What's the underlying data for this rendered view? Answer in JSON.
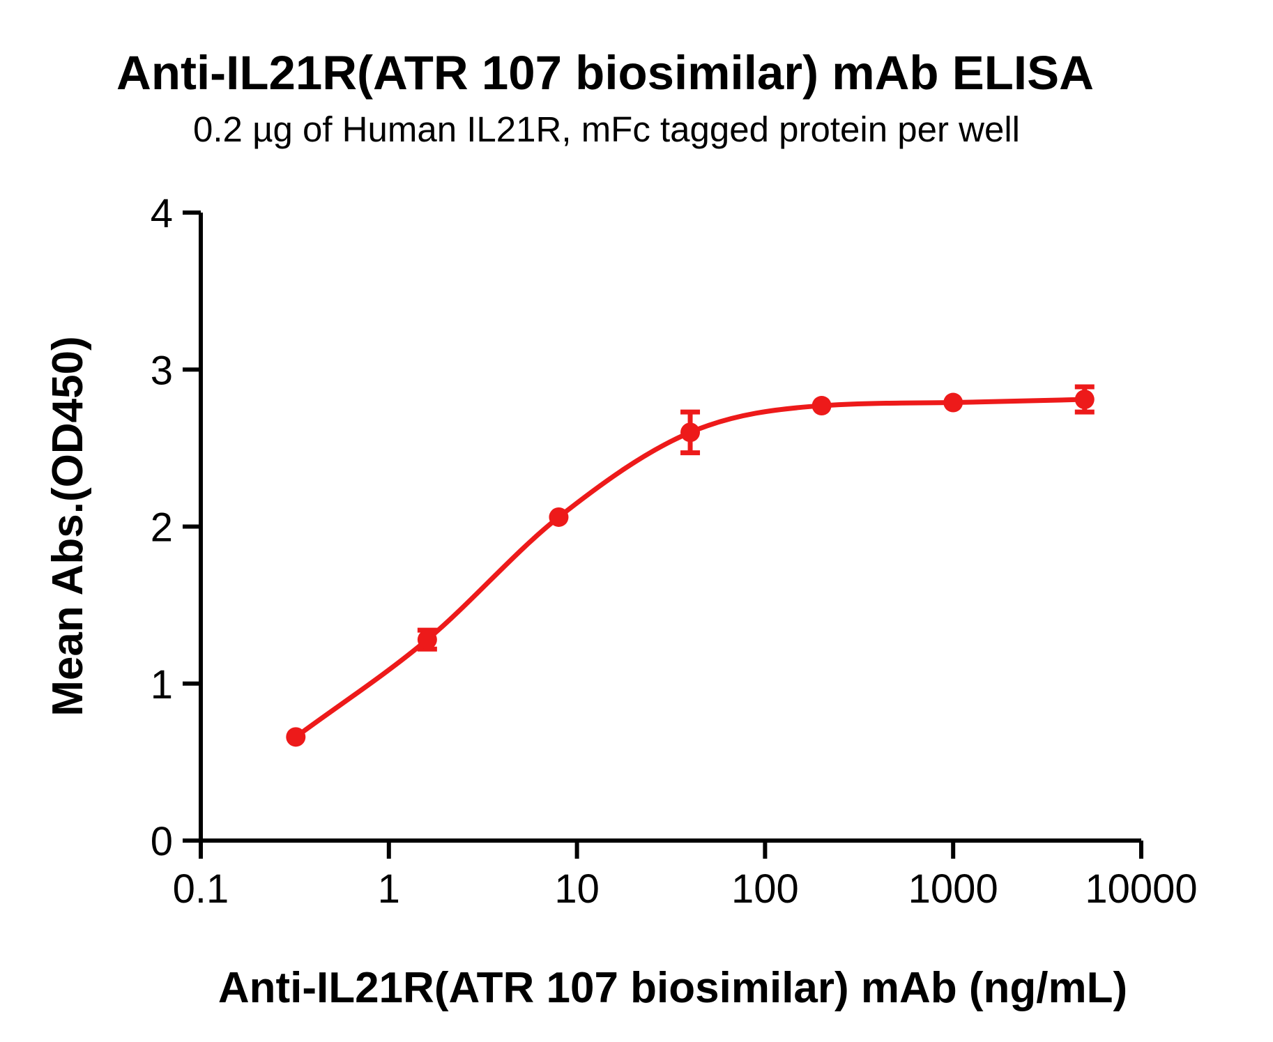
{
  "chart_data": {
    "type": "line",
    "title": "Anti-IL21R(ATR 107 biosimilar) mAb ELISA",
    "subtitle": "0.2 µg of Human IL21R, mFc tagged protein per well",
    "xlabel": "Anti-IL21R(ATR 107 biosimilar) mAb (ng/mL)",
    "ylabel": "Mean Abs.(OD450)",
    "x_scale": "log10",
    "x_range": [
      0.1,
      10000
    ],
    "y_range": [
      0,
      4
    ],
    "x_ticks": [
      0.1,
      1,
      10,
      100,
      1000,
      10000
    ],
    "x_tick_labels": [
      "0.1",
      "1",
      "10",
      "100",
      "1000",
      "10000"
    ],
    "y_ticks": [
      0,
      1,
      2,
      3,
      4
    ],
    "y_tick_labels": [
      "0",
      "1",
      "2",
      "3",
      "4"
    ],
    "grid": false,
    "legend": "none",
    "axis_color": "#000000",
    "series": [
      {
        "name": "Anti-IL21R(ATR 107 biosimilar) mAb",
        "color": "#ED1A1A",
        "marker": "circle",
        "curve": "sigmoid-through-points",
        "points": [
          {
            "x": 0.32,
            "y": 0.66,
            "err": 0
          },
          {
            "x": 1.6,
            "y": 1.28,
            "err": 0.06
          },
          {
            "x": 8,
            "y": 2.06,
            "err": 0
          },
          {
            "x": 40,
            "y": 2.6,
            "err": 0.13
          },
          {
            "x": 200,
            "y": 2.77,
            "err": 0
          },
          {
            "x": 1000,
            "y": 2.79,
            "err": 0
          },
          {
            "x": 5000,
            "y": 2.81,
            "err": 0.08
          }
        ]
      }
    ]
  }
}
